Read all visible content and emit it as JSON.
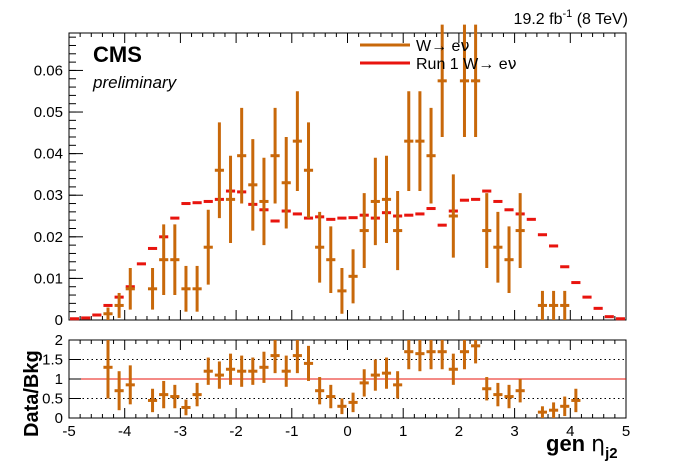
{
  "header": {
    "lumi_value": "19.2 fb",
    "lumi_exp": "-1",
    "lumi_energy": " (8 TeV)",
    "cms": "CMS",
    "preliminary": "preliminary"
  },
  "colors": {
    "data": "#c8680a",
    "mc": "#e8140e",
    "axis": "#000000",
    "ref_line": "#e8140e"
  },
  "chart_data": [
    {
      "type": "scatter",
      "xlabel": "gen η_j2",
      "xlabel_main": "gen",
      "xlabel_symbol": "η",
      "xlabel_sub": "j2",
      "xlim": [
        -5,
        5
      ],
      "ylim": [
        0,
        0.069
      ],
      "y_ticks": [
        0,
        0.01,
        0.02,
        0.03,
        0.04,
        0.05,
        0.06
      ],
      "y_tick_labels": [
        "0",
        "0.01",
        "0.02",
        "0.03",
        "0.04",
        "0.05",
        "0.06"
      ],
      "x_ticks": [
        -5,
        -4,
        -3,
        -2,
        -1,
        0,
        1,
        2,
        3,
        4,
        5
      ],
      "x_tick_labels": [
        "-5",
        "-4",
        "-3",
        "-2",
        "-1",
        "0",
        "1",
        "2",
        "3",
        "4",
        "5"
      ],
      "legend_position": "top-center",
      "bin_width": 0.2,
      "series": [
        {
          "name": "W→ eν",
          "legend_main": "W→ e",
          "legend_nu": "ν",
          "style": "points-with-errors",
          "points": [
            {
              "x": -4.3,
              "y": 0.0015,
              "err": 0.0015
            },
            {
              "x": -4.1,
              "y": 0.0035,
              "err": 0.003
            },
            {
              "x": -3.9,
              "y": 0.0075,
              "err": 0.005
            },
            {
              "x": -3.5,
              "y": 0.0075,
              "err": 0.005
            },
            {
              "x": -3.3,
              "y": 0.0145,
              "err": 0.0085
            },
            {
              "x": -3.1,
              "y": 0.0145,
              "err": 0.0085
            },
            {
              "x": -2.9,
              "y": 0.0075,
              "err": 0.0055
            },
            {
              "x": -2.7,
              "y": 0.0075,
              "err": 0.0055
            },
            {
              "x": -2.5,
              "y": 0.0175,
              "err": 0.009
            },
            {
              "x": -2.3,
              "y": 0.036,
              "err": 0.0115
            },
            {
              "x": -2.1,
              "y": 0.029,
              "err": 0.0105
            },
            {
              "x": -1.9,
              "y": 0.0395,
              "err": 0.0115
            },
            {
              "x": -1.7,
              "y": 0.0325,
              "err": 0.011
            },
            {
              "x": -1.5,
              "y": 0.0285,
              "err": 0.0105
            },
            {
              "x": -1.3,
              "y": 0.0395,
              "err": 0.0115
            },
            {
              "x": -1.1,
              "y": 0.033,
              "err": 0.011
            },
            {
              "x": -0.9,
              "y": 0.043,
              "err": 0.012
            },
            {
              "x": -0.7,
              "y": 0.036,
              "err": 0.0115
            },
            {
              "x": -0.5,
              "y": 0.0175,
              "err": 0.0085
            },
            {
              "x": -0.3,
              "y": 0.0145,
              "err": 0.008
            },
            {
              "x": -0.1,
              "y": 0.007,
              "err": 0.0055
            },
            {
              "x": 0.1,
              "y": 0.0105,
              "err": 0.0065
            },
            {
              "x": 0.3,
              "y": 0.0215,
              "err": 0.009
            },
            {
              "x": 0.5,
              "y": 0.0285,
              "err": 0.0105
            },
            {
              "x": 0.7,
              "y": 0.029,
              "err": 0.0105
            },
            {
              "x": 0.9,
              "y": 0.0215,
              "err": 0.0095
            },
            {
              "x": 1.1,
              "y": 0.043,
              "err": 0.012
            },
            {
              "x": 1.3,
              "y": 0.043,
              "err": 0.012
            },
            {
              "x": 1.5,
              "y": 0.0395,
              "err": 0.0115
            },
            {
              "x": 1.7,
              "y": 0.0575,
              "err": 0.0135
            },
            {
              "x": 1.9,
              "y": 0.025,
              "err": 0.01
            },
            {
              "x": 2.1,
              "y": 0.0575,
              "err": 0.0135
            },
            {
              "x": 2.3,
              "y": 0.0575,
              "err": 0.0135
            },
            {
              "x": 2.5,
              "y": 0.0215,
              "err": 0.009
            },
            {
              "x": 2.7,
              "y": 0.0175,
              "err": 0.0085
            },
            {
              "x": 2.9,
              "y": 0.0145,
              "err": 0.008
            },
            {
              "x": 3.1,
              "y": 0.0215,
              "err": 0.009
            },
            {
              "x": 3.5,
              "y": 0.0035,
              "err": 0.0035
            },
            {
              "x": 3.7,
              "y": 0.0035,
              "err": 0.0035
            },
            {
              "x": 3.9,
              "y": 0.0035,
              "err": 0.0035
            }
          ]
        },
        {
          "name": "Run 1 W→ eν",
          "legend_main": "Run 1 W→ e",
          "legend_nu": "ν",
          "style": "points-horizontal",
          "points": [
            {
              "x": -4.9,
              "y": 0.0003
            },
            {
              "x": -4.7,
              "y": 0.0005
            },
            {
              "x": -4.5,
              "y": 0.0012
            },
            {
              "x": -4.3,
              "y": 0.0035
            },
            {
              "x": -4.1,
              "y": 0.0055
            },
            {
              "x": -3.9,
              "y": 0.008
            },
            {
              "x": -3.7,
              "y": 0.0135
            },
            {
              "x": -3.5,
              "y": 0.0172
            },
            {
              "x": -3.3,
              "y": 0.02
            },
            {
              "x": -3.1,
              "y": 0.0245
            },
            {
              "x": -2.9,
              "y": 0.028
            },
            {
              "x": -2.7,
              "y": 0.0282
            },
            {
              "x": -2.5,
              "y": 0.0285
            },
            {
              "x": -2.3,
              "y": 0.029
            },
            {
              "x": -2.1,
              "y": 0.031
            },
            {
              "x": -1.9,
              "y": 0.0308
            },
            {
              "x": -1.7,
              "y": 0.0278
            },
            {
              "x": -1.5,
              "y": 0.0265
            },
            {
              "x": -1.3,
              "y": 0.0238
            },
            {
              "x": -1.1,
              "y": 0.0262
            },
            {
              "x": -0.9,
              "y": 0.0255
            },
            {
              "x": -0.7,
              "y": 0.0245
            },
            {
              "x": -0.5,
              "y": 0.0248
            },
            {
              "x": -0.3,
              "y": 0.0242
            },
            {
              "x": -0.1,
              "y": 0.0245
            },
            {
              "x": 0.1,
              "y": 0.0246
            },
            {
              "x": 0.3,
              "y": 0.0252
            },
            {
              "x": 0.5,
              "y": 0.0245
            },
            {
              "x": 0.7,
              "y": 0.0258
            },
            {
              "x": 0.9,
              "y": 0.025
            },
            {
              "x": 1.1,
              "y": 0.0252
            },
            {
              "x": 1.3,
              "y": 0.0255
            },
            {
              "x": 1.5,
              "y": 0.0268
            },
            {
              "x": 1.7,
              "y": 0.0228
            },
            {
              "x": 1.9,
              "y": 0.0262
            },
            {
              "x": 2.1,
              "y": 0.0288
            },
            {
              "x": 2.3,
              "y": 0.029
            },
            {
              "x": 2.5,
              "y": 0.031
            },
            {
              "x": 2.7,
              "y": 0.0285
            },
            {
              "x": 2.9,
              "y": 0.0265
            },
            {
              "x": 3.1,
              "y": 0.0255
            },
            {
              "x": 3.3,
              "y": 0.0242
            },
            {
              "x": 3.5,
              "y": 0.0205
            },
            {
              "x": 3.7,
              "y": 0.0178
            },
            {
              "x": 3.9,
              "y": 0.0128
            },
            {
              "x": 4.1,
              "y": 0.009
            },
            {
              "x": 4.3,
              "y": 0.0055
            },
            {
              "x": 4.5,
              "y": 0.0028
            },
            {
              "x": 4.7,
              "y": 0.0008
            },
            {
              "x": 4.9,
              "y": 0.0003
            }
          ]
        }
      ]
    },
    {
      "type": "scatter",
      "ylabel": "Data/Bkg",
      "xlim": [
        -5,
        5
      ],
      "ylim": [
        0,
        2
      ],
      "y_ticks": [
        0,
        0.5,
        1,
        1.5,
        2
      ],
      "y_tick_labels": [
        "0",
        "0.5",
        "1",
        "1.5",
        "2"
      ],
      "reference_lines": [
        0.5,
        1.5
      ],
      "unity_line": 1,
      "grid": "dotted at 0.5 and 1.5",
      "series": [
        {
          "name": "",
          "style": "points-with-errors",
          "points": [
            {
              "x": -4.3,
              "y": 1.3,
              "err": 0.8
            },
            {
              "x": -4.1,
              "y": 0.7,
              "err": 0.5
            },
            {
              "x": -3.9,
              "y": 0.85,
              "err": 0.5
            },
            {
              "x": -3.5,
              "y": 0.45,
              "err": 0.3
            },
            {
              "x": -3.3,
              "y": 0.6,
              "err": 0.35
            },
            {
              "x": -3.1,
              "y": 0.55,
              "err": 0.3
            },
            {
              "x": -2.9,
              "y": 0.27,
              "err": 0.2
            },
            {
              "x": -2.7,
              "y": 0.6,
              "err": 0.3
            },
            {
              "x": -2.5,
              "y": 1.2,
              "err": 0.35
            },
            {
              "x": -2.3,
              "y": 1.1,
              "err": 0.35
            },
            {
              "x": -2.1,
              "y": 1.25,
              "err": 0.4
            },
            {
              "x": -1.9,
              "y": 1.2,
              "err": 0.4
            },
            {
              "x": -1.7,
              "y": 1.2,
              "err": 0.35
            },
            {
              "x": -1.5,
              "y": 1.3,
              "err": 0.4
            },
            {
              "x": -1.3,
              "y": 1.6,
              "err": 0.45
            },
            {
              "x": -1.1,
              "y": 1.2,
              "err": 0.4
            },
            {
              "x": -0.9,
              "y": 1.6,
              "err": 0.45
            },
            {
              "x": -0.7,
              "y": 1.4,
              "err": 0.45
            },
            {
              "x": -0.5,
              "y": 0.7,
              "err": 0.35
            },
            {
              "x": -0.3,
              "y": 0.55,
              "err": 0.3
            },
            {
              "x": -0.1,
              "y": 0.3,
              "err": 0.2
            },
            {
              "x": 0.1,
              "y": 0.4,
              "err": 0.25
            },
            {
              "x": 0.3,
              "y": 0.9,
              "err": 0.35
            },
            {
              "x": 0.5,
              "y": 1.1,
              "err": 0.4
            },
            {
              "x": 0.7,
              "y": 1.15,
              "err": 0.4
            },
            {
              "x": 0.9,
              "y": 0.85,
              "err": 0.35
            },
            {
              "x": 1.1,
              "y": 1.7,
              "err": 0.45
            },
            {
              "x": 1.3,
              "y": 1.65,
              "err": 0.45
            },
            {
              "x": 1.5,
              "y": 1.7,
              "err": 0.45
            },
            {
              "x": 1.7,
              "y": 1.7,
              "err": 0.45
            },
            {
              "x": 1.9,
              "y": 1.25,
              "err": 0.4
            },
            {
              "x": 2.1,
              "y": 1.7,
              "err": 0.45
            },
            {
              "x": 2.3,
              "y": 1.85,
              "err": 0.45
            },
            {
              "x": 2.5,
              "y": 0.75,
              "err": 0.3
            },
            {
              "x": 2.7,
              "y": 0.6,
              "err": 0.3
            },
            {
              "x": 2.9,
              "y": 0.55,
              "err": 0.3
            },
            {
              "x": 3.1,
              "y": 0.7,
              "err": 0.3
            },
            {
              "x": 3.5,
              "y": 0.15,
              "err": 0.15
            },
            {
              "x": 3.7,
              "y": 0.2,
              "err": 0.2
            },
            {
              "x": 3.9,
              "y": 0.3,
              "err": 0.25
            },
            {
              "x": 4.1,
              "y": 0.45,
              "err": 0.3
            }
          ]
        }
      ]
    }
  ]
}
